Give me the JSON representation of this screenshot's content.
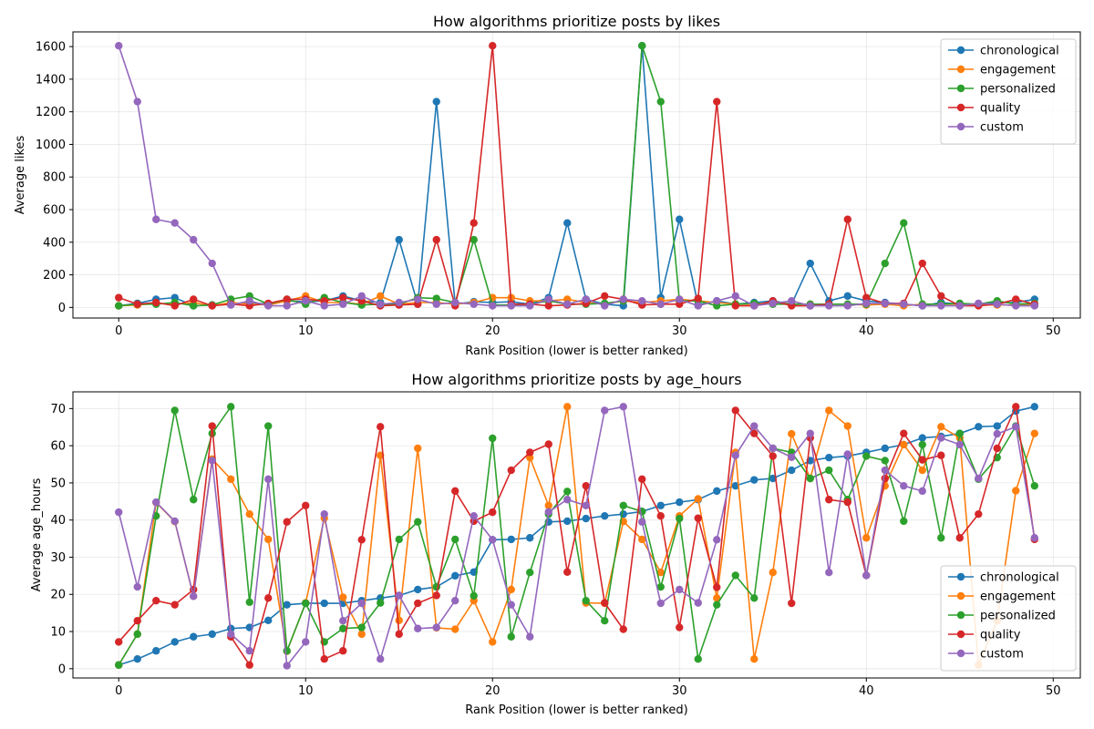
{
  "colors": {
    "chronological": "#1f77b4",
    "engagement": "#ff7f0e",
    "personalized": "#2ca02c",
    "quality": "#d62728",
    "custom": "#9467bd"
  },
  "chart_data": [
    {
      "type": "line",
      "title": "How algorithms prioritize posts by likes",
      "xlabel": "Rank Position (lower is better ranked)",
      "ylabel": "Average likes",
      "xlim": [
        -2.45,
        51.45
      ],
      "ylim": [
        -65,
        1690
      ],
      "xticks": [
        0,
        10,
        20,
        30,
        40,
        50
      ],
      "yticks": [
        0,
        200,
        400,
        600,
        800,
        1000,
        1200,
        1400,
        1600
      ],
      "grid": true,
      "legend_position": "upper right",
      "x": [
        0,
        1,
        2,
        3,
        4,
        5,
        6,
        7,
        8,
        9,
        10,
        11,
        12,
        13,
        14,
        15,
        16,
        17,
        18,
        19,
        20,
        21,
        22,
        23,
        24,
        25,
        26,
        27,
        28,
        29,
        30,
        31,
        32,
        33,
        34,
        35,
        36,
        37,
        38,
        39,
        40,
        41,
        42,
        43,
        44,
        45,
        46,
        47,
        48,
        49
      ],
      "series": [
        {
          "name": "chronological",
          "values": [
            10,
            25,
            50,
            60,
            10,
            15,
            20,
            30,
            20,
            40,
            35,
            40,
            70,
            40,
            30,
            415,
            20,
            1262,
            20,
            35,
            30,
            35,
            20,
            60,
            518,
            50,
            20,
            10,
            1605,
            60,
            540,
            15,
            40,
            20,
            30,
            40,
            20,
            270,
            40,
            70,
            40,
            30,
            20,
            10,
            30,
            20,
            20,
            30,
            30,
            50
          ]
        },
        {
          "name": "engagement",
          "values": [
            10,
            15,
            25,
            20,
            30,
            10,
            30,
            20,
            15,
            40,
            70,
            30,
            30,
            20,
            70,
            20,
            30,
            30,
            20,
            30,
            60,
            60,
            40,
            40,
            50,
            30,
            20,
            40,
            30,
            40,
            50,
            40,
            30,
            20,
            20,
            30,
            20,
            20,
            20,
            20,
            15,
            20,
            10,
            20,
            20,
            20,
            15,
            15,
            15,
            15
          ]
        },
        {
          "name": "personalized",
          "values": [
            10,
            20,
            20,
            30,
            10,
            15,
            50,
            70,
            20,
            50,
            20,
            60,
            30,
            15,
            20,
            20,
            60,
            55,
            30,
            415,
            15,
            15,
            20,
            40,
            20,
            20,
            25,
            40,
            1605,
            1262,
            40,
            40,
            10,
            20,
            25,
            20,
            20,
            20,
            20,
            20,
            20,
            270,
            518,
            20,
            20,
            25,
            20,
            40,
            20,
            25
          ]
        },
        {
          "name": "quality",
          "values": [
            60,
            20,
            30,
            10,
            50,
            10,
            20,
            10,
            25,
            50,
            50,
            40,
            60,
            40,
            10,
            15,
            20,
            415,
            10,
            518,
            1605,
            20,
            20,
            10,
            15,
            25,
            70,
            50,
            15,
            20,
            20,
            55,
            1262,
            10,
            10,
            40,
            10,
            10,
            20,
            540,
            60,
            25,
            25,
            270,
            70,
            10,
            10,
            20,
            50,
            20
          ]
        },
        {
          "name": "custom",
          "values": [
            1605,
            1262,
            540,
            518,
            415,
            270,
            15,
            40,
            10,
            10,
            40,
            10,
            20,
            70,
            20,
            30,
            50,
            20,
            30,
            20,
            10,
            10,
            10,
            50,
            20,
            50,
            10,
            50,
            40,
            20,
            50,
            10,
            40,
            70,
            10,
            25,
            40,
            10,
            10,
            10,
            25,
            25,
            20,
            10,
            10,
            10,
            25,
            20,
            10,
            10
          ]
        }
      ]
    },
    {
      "type": "line",
      "title": "How algorithms prioritize posts by age_hours",
      "xlabel": "Rank Position (lower is better ranked)",
      "ylabel": "Average age_hours",
      "xlim": [
        -2.45,
        51.45
      ],
      "ylim": [
        -2.5,
        74.5
      ],
      "xticks": [
        0,
        10,
        20,
        30,
        40,
        50
      ],
      "yticks": [
        0,
        10,
        20,
        30,
        40,
        50,
        60,
        70
      ],
      "grid": true,
      "legend_position": "lower right",
      "x": [
        0,
        1,
        2,
        3,
        4,
        5,
        6,
        7,
        8,
        9,
        10,
        11,
        12,
        13,
        14,
        15,
        16,
        17,
        18,
        19,
        20,
        21,
        22,
        23,
        24,
        25,
        26,
        27,
        28,
        29,
        30,
        31,
        32,
        33,
        34,
        35,
        36,
        37,
        38,
        39,
        40,
        41,
        42,
        43,
        44,
        45,
        46,
        47,
        48,
        49
      ],
      "series": [
        {
          "name": "chronological",
          "values": [
            1,
            2.6,
            4.8,
            7.2,
            8.6,
            9.3,
            10.8,
            11.1,
            13,
            17.2,
            17.6,
            17.6,
            17.6,
            18.3,
            19,
            19.7,
            21.3,
            22,
            25,
            26,
            34.7,
            34.8,
            35.2,
            39.5,
            39.7,
            40.4,
            41.1,
            41.6,
            42.3,
            43.9,
            44.8,
            45.5,
            47.8,
            49.2,
            50.8,
            51.2,
            53.4,
            56,
            56.8,
            57.2,
            58.2,
            59.3,
            60.3,
            62.1,
            62.5,
            63.3,
            65.1,
            65.3,
            69.3,
            70.5
          ]
        },
        {
          "name": "engagement",
          "values": [
            1,
            9.3,
            44.7,
            39.6,
            19.5,
            56.4,
            51,
            41.6,
            34.8,
            4.7,
            17.7,
            40.5,
            19.2,
            9.3,
            57.4,
            13,
            59.3,
            11,
            10.6,
            18.3,
            7.2,
            21.3,
            56.8,
            43.9,
            70.5,
            17.7,
            17.6,
            39.6,
            34.8,
            25.9,
            41.1,
            45.7,
            19,
            58.2,
            2.6,
            25.9,
            63.2,
            51.2,
            69.5,
            65.3,
            35.2,
            49.2,
            60.3,
            53.4,
            65.1,
            62.1,
            1,
            12.9,
            47.9,
            63.3
          ]
        },
        {
          "name": "personalized",
          "values": [
            1,
            9.3,
            41.1,
            69.5,
            45.5,
            63.3,
            70.5,
            17.9,
            65.3,
            4.8,
            17.6,
            7.2,
            10.8,
            11.1,
            17.7,
            34.8,
            39.5,
            22,
            34.8,
            19.6,
            62,
            8.6,
            25.9,
            41.6,
            47.7,
            18.3,
            12.9,
            43.9,
            42.3,
            22,
            40.4,
            2.6,
            17.2,
            25.1,
            19,
            59.3,
            58.2,
            51.2,
            53.4,
            45.5,
            57.2,
            56,
            39.7,
            60.3,
            35.2,
            63.3,
            51,
            56.8,
            65.3,
            49.2
          ]
        },
        {
          "name": "quality",
          "values": [
            7.2,
            12.9,
            18.3,
            17.2,
            21.3,
            65.3,
            8.6,
            1,
            19,
            39.5,
            43.9,
            2.6,
            4.8,
            34.7,
            65.1,
            9.3,
            17.6,
            19.7,
            47.8,
            39.7,
            42.1,
            53.4,
            58.2,
            60.4,
            26,
            49.2,
            17.7,
            10.6,
            51,
            41.1,
            11.1,
            40.5,
            21.9,
            69.5,
            63.3,
            57.2,
            17.6,
            62.1,
            45.5,
            44.8,
            25.1,
            51.2,
            63.3,
            56.2,
            57.4,
            35.2,
            41.6,
            59.3,
            70.5,
            34.8
          ]
        },
        {
          "name": "custom",
          "values": [
            42.1,
            22,
            44.8,
            39.7,
            19.5,
            56,
            9.3,
            4.8,
            51,
            0.8,
            7.2,
            41.6,
            12.9,
            17.6,
            2.6,
            19.7,
            10.8,
            11.1,
            18.3,
            41.1,
            34.7,
            17.2,
            8.6,
            42.2,
            45.5,
            43.9,
            69.5,
            70.5,
            39.5,
            17.6,
            21.3,
            17.7,
            34.7,
            57.4,
            65.3,
            59.3,
            56.9,
            63.3,
            25.9,
            57.7,
            25.1,
            53.4,
            49.2,
            47.8,
            62.1,
            60.3,
            51.2,
            63.2,
            65.1,
            35.2
          ]
        }
      ]
    }
  ]
}
